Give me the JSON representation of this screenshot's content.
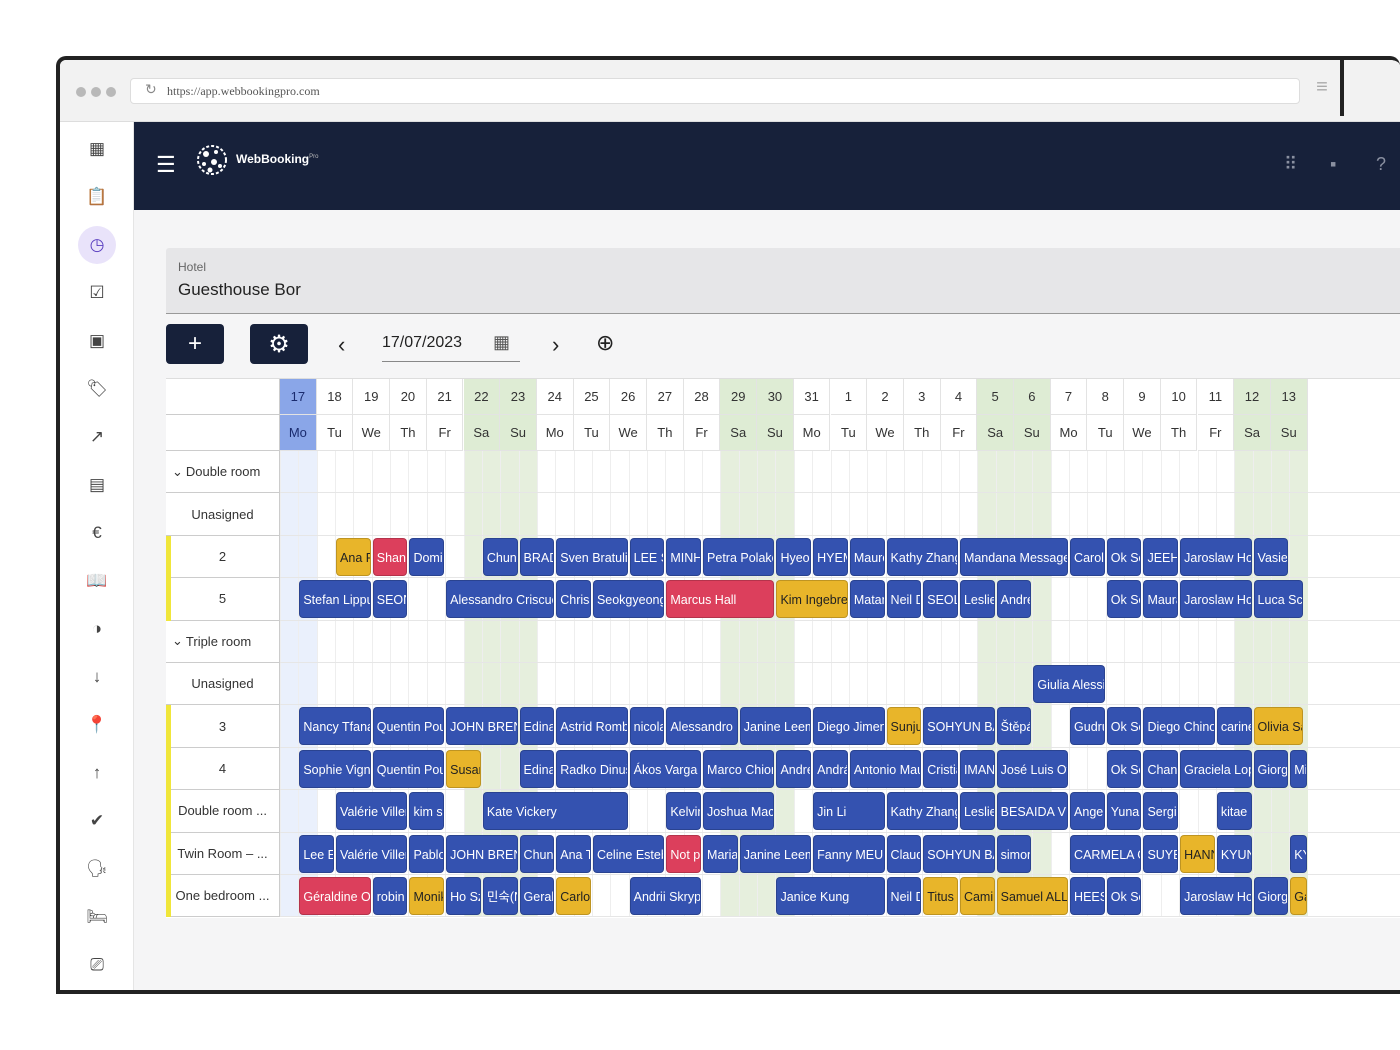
{
  "browser": {
    "url": "https://app.webbookingpro.com"
  },
  "app": {
    "logo_name": "WebBooking",
    "logo_sup": "Pro"
  },
  "hotel": {
    "label": "Hotel",
    "value": "Guesthouse Bor"
  },
  "toolbar": {
    "add_label": "+",
    "settings_icon": "gear-icon",
    "prev": "‹",
    "next": "›",
    "date": "17/07/2023"
  },
  "days": {
    "numbers": [
      "17",
      "18",
      "19",
      "20",
      "21",
      "22",
      "23",
      "24",
      "25",
      "26",
      "27",
      "28",
      "29",
      "30",
      "31",
      "1",
      "2",
      "3",
      "4",
      "5",
      "6",
      "7",
      "8",
      "9",
      "10",
      "11",
      "12",
      "13"
    ],
    "names": [
      "Mo",
      "Tu",
      "We",
      "Th",
      "Fr",
      "Sa",
      "Su",
      "Mo",
      "Tu",
      "We",
      "Th",
      "Fr",
      "Sa",
      "Su",
      "Mo",
      "Tu",
      "We",
      "Th",
      "Fr",
      "Sa",
      "Su",
      "Mo",
      "Tu",
      "We",
      "Th",
      "Fr",
      "Sa",
      "Su"
    ]
  },
  "rows": [
    {
      "label": "Double room",
      "type": "group"
    },
    {
      "label": "Unasigned",
      "type": "room"
    },
    {
      "label": "2",
      "type": "room"
    },
    {
      "label": "5",
      "type": "room"
    },
    {
      "label": "Triple room",
      "type": "group"
    },
    {
      "label": "Unasigned",
      "type": "room"
    },
    {
      "label": "3",
      "type": "room"
    },
    {
      "label": "4",
      "type": "room"
    },
    {
      "label": "Double room ...",
      "type": "room"
    },
    {
      "label": "Twin Room – ...",
      "type": "room"
    },
    {
      "label": "One bedroom ...",
      "type": "room"
    }
  ],
  "bookings": [
    {
      "row": 2,
      "day": 1.5,
      "span": 1,
      "name": "Ana Pc",
      "color": "y"
    },
    {
      "row": 2,
      "day": 2.5,
      "span": 1,
      "name": "Shann",
      "color": "r"
    },
    {
      "row": 2,
      "day": 3.5,
      "span": 1,
      "name": "Domin",
      "color": "b"
    },
    {
      "row": 2,
      "day": 5.5,
      "span": 1,
      "name": "Chun-",
      "color": "b"
    },
    {
      "row": 2,
      "day": 6.5,
      "span": 1,
      "name": "BRADY",
      "color": "b"
    },
    {
      "row": 2,
      "day": 7.5,
      "span": 2,
      "name": "Sven Bratulic",
      "color": "b"
    },
    {
      "row": 2,
      "day": 9.5,
      "span": 1,
      "name": "LEE SC",
      "color": "b"
    },
    {
      "row": 2,
      "day": 10.5,
      "span": 1,
      "name": "MINH",
      "color": "b"
    },
    {
      "row": 2,
      "day": 11.5,
      "span": 2,
      "name": "Petra Polakov",
      "color": "b"
    },
    {
      "row": 2,
      "day": 13.5,
      "span": 1,
      "name": "Hyeon",
      "color": "b"
    },
    {
      "row": 2,
      "day": 14.5,
      "span": 1,
      "name": "HYEM",
      "color": "b"
    },
    {
      "row": 2,
      "day": 15.5,
      "span": 1,
      "name": "Mauro",
      "color": "b"
    },
    {
      "row": 2,
      "day": 16.5,
      "span": 2,
      "name": "Kathy Zhang",
      "color": "b"
    },
    {
      "row": 2,
      "day": 18.5,
      "span": 3,
      "name": "Mandana Messager",
      "color": "b"
    },
    {
      "row": 2,
      "day": 21.5,
      "span": 1,
      "name": "Carolin",
      "color": "b"
    },
    {
      "row": 2,
      "day": 22.5,
      "span": 1,
      "name": "Ok So",
      "color": "b"
    },
    {
      "row": 2,
      "day": 23.5,
      "span": 1,
      "name": "JEEHY",
      "color": "b"
    },
    {
      "row": 2,
      "day": 24.5,
      "span": 2,
      "name": "Jaroslaw Horo",
      "color": "b"
    },
    {
      "row": 2,
      "day": 26.5,
      "span": 1,
      "name": "Vasieic",
      "color": "b"
    },
    {
      "row": 3,
      "day": 0.5,
      "span": 2,
      "name": "Stefan Lippun",
      "color": "b"
    },
    {
      "row": 3,
      "day": 2.5,
      "span": 1,
      "name": "SEONJ",
      "color": "b"
    },
    {
      "row": 3,
      "day": 4.5,
      "span": 3,
      "name": "Alessandro Criscuolo",
      "color": "b"
    },
    {
      "row": 3,
      "day": 7.5,
      "span": 1,
      "name": "Chrissi",
      "color": "b"
    },
    {
      "row": 3,
      "day": 8.5,
      "span": 2,
      "name": "Seokgyeong",
      "color": "b"
    },
    {
      "row": 3,
      "day": 10.5,
      "span": 3,
      "name": "Marcus Hall",
      "color": "r"
    },
    {
      "row": 3,
      "day": 13.5,
      "span": 2,
      "name": "Kim Ingebrets",
      "color": "y"
    },
    {
      "row": 3,
      "day": 15.5,
      "span": 1,
      "name": "Matan",
      "color": "b"
    },
    {
      "row": 3,
      "day": 16.5,
      "span": 1,
      "name": "Neil D",
      "color": "b"
    },
    {
      "row": 3,
      "day": 17.5,
      "span": 1,
      "name": "SEOLH",
      "color": "b"
    },
    {
      "row": 3,
      "day": 18.5,
      "span": 1,
      "name": "Leslie",
      "color": "b"
    },
    {
      "row": 3,
      "day": 19.5,
      "span": 1,
      "name": "Andrea",
      "color": "b"
    },
    {
      "row": 3,
      "day": 22.5,
      "span": 1,
      "name": "Ok So",
      "color": "b"
    },
    {
      "row": 3,
      "day": 23.5,
      "span": 1,
      "name": "Maura",
      "color": "b"
    },
    {
      "row": 3,
      "day": 24.5,
      "span": 2,
      "name": "Jaroslaw Horo",
      "color": "b"
    },
    {
      "row": 3,
      "day": 26.5,
      "span": 1.4,
      "name": "Luca Schia",
      "color": "b"
    },
    {
      "row": 5,
      "day": 20.5,
      "span": 2,
      "name": "Giulia Alessi",
      "color": "b"
    },
    {
      "row": 6,
      "day": 0.5,
      "span": 2,
      "name": "Nancy Tfanak",
      "color": "b"
    },
    {
      "row": 6,
      "day": 2.5,
      "span": 2,
      "name": "Quentin Poup",
      "color": "b"
    },
    {
      "row": 6,
      "day": 4.5,
      "span": 2,
      "name": "JOHN BRENN",
      "color": "b"
    },
    {
      "row": 6,
      "day": 6.5,
      "span": 1,
      "name": "Edina",
      "color": "b"
    },
    {
      "row": 6,
      "day": 7.5,
      "span": 2,
      "name": "Astrid Rombo",
      "color": "b"
    },
    {
      "row": 6,
      "day": 9.5,
      "span": 1,
      "name": "nicolas",
      "color": "b"
    },
    {
      "row": 6,
      "day": 10.5,
      "span": 2,
      "name": "Alessandro Fe",
      "color": "b"
    },
    {
      "row": 6,
      "day": 12.5,
      "span": 2,
      "name": "Janine Leemr",
      "color": "b"
    },
    {
      "row": 6,
      "day": 14.5,
      "span": 2,
      "name": "Diego Jimene",
      "color": "b"
    },
    {
      "row": 6,
      "day": 16.5,
      "span": 1,
      "name": "Sunjur",
      "color": "y"
    },
    {
      "row": 6,
      "day": 17.5,
      "span": 2,
      "name": "SOHYUN BAE",
      "color": "b"
    },
    {
      "row": 6,
      "day": 19.5,
      "span": 1,
      "name": "Štěpán",
      "color": "b"
    },
    {
      "row": 6,
      "day": 21.5,
      "span": 1,
      "name": "Gudru",
      "color": "b"
    },
    {
      "row": 6,
      "day": 22.5,
      "span": 1,
      "name": "Ok So",
      "color": "b"
    },
    {
      "row": 6,
      "day": 23.5,
      "span": 2,
      "name": "Diego Chinos",
      "color": "b"
    },
    {
      "row": 6,
      "day": 25.5,
      "span": 1,
      "name": "carine",
      "color": "b"
    },
    {
      "row": 6,
      "day": 26.5,
      "span": 1.4,
      "name": "Olivia San",
      "color": "y"
    },
    {
      "row": 7,
      "day": 0.5,
      "span": 2,
      "name": "Sophie Vigna",
      "color": "b"
    },
    {
      "row": 7,
      "day": 2.5,
      "span": 2,
      "name": "Quentin Poup",
      "color": "b"
    },
    {
      "row": 7,
      "day": 4.5,
      "span": 1,
      "name": "Susan",
      "color": "y"
    },
    {
      "row": 7,
      "day": 6.5,
      "span": 1,
      "name": "Edina",
      "color": "b"
    },
    {
      "row": 7,
      "day": 7.5,
      "span": 2,
      "name": "Radko Dinuš",
      "color": "b"
    },
    {
      "row": 7,
      "day": 9.5,
      "span": 2,
      "name": "Ákos Varga",
      "color": "b"
    },
    {
      "row": 7,
      "day": 11.5,
      "span": 2,
      "name": "Marco Chione",
      "color": "b"
    },
    {
      "row": 7,
      "day": 13.5,
      "span": 1,
      "name": "Andrea",
      "color": "b"
    },
    {
      "row": 7,
      "day": 14.5,
      "span": 1,
      "name": "András",
      "color": "b"
    },
    {
      "row": 7,
      "day": 15.5,
      "span": 2,
      "name": "Antonio Mau",
      "color": "b"
    },
    {
      "row": 7,
      "day": 17.5,
      "span": 1,
      "name": "Cristia",
      "color": "b"
    },
    {
      "row": 7,
      "day": 18.5,
      "span": 1,
      "name": "IMAN",
      "color": "b"
    },
    {
      "row": 7,
      "day": 19.5,
      "span": 2,
      "name": "José Luis Ove",
      "color": "b"
    },
    {
      "row": 7,
      "day": 22.5,
      "span": 1,
      "name": "Ok So",
      "color": "b"
    },
    {
      "row": 7,
      "day": 23.5,
      "span": 1,
      "name": "Chanh",
      "color": "b"
    },
    {
      "row": 7,
      "day": 24.5,
      "span": 2,
      "name": "Graciela Lope",
      "color": "b"
    },
    {
      "row": 7,
      "day": 26.5,
      "span": 1,
      "name": "Giorgi",
      "color": "b"
    },
    {
      "row": 7,
      "day": 27.5,
      "span": 0.5,
      "name": "Mi",
      "color": "b"
    },
    {
      "row": 8,
      "day": 1.5,
      "span": 2,
      "name": "Valérie Villene",
      "color": "b"
    },
    {
      "row": 8,
      "day": 3.5,
      "span": 1,
      "name": "kim se",
      "color": "b"
    },
    {
      "row": 8,
      "day": 5.5,
      "span": 4,
      "name": "Kate Vickery",
      "color": "b"
    },
    {
      "row": 8,
      "day": 10.5,
      "span": 1,
      "name": "Kelvin",
      "color": "b"
    },
    {
      "row": 8,
      "day": 11.5,
      "span": 2,
      "name": "Joshua Mack",
      "color": "b"
    },
    {
      "row": 8,
      "day": 14.5,
      "span": 2,
      "name": "Jin Li",
      "color": "b"
    },
    {
      "row": 8,
      "day": 16.5,
      "span": 2,
      "name": "Kathy Zhang",
      "color": "b"
    },
    {
      "row": 8,
      "day": 18.5,
      "span": 1,
      "name": "Leslie",
      "color": "b"
    },
    {
      "row": 8,
      "day": 19.5,
      "span": 2,
      "name": "BESAIDA VER",
      "color": "b"
    },
    {
      "row": 8,
      "day": 21.5,
      "span": 1,
      "name": "Angela",
      "color": "b"
    },
    {
      "row": 8,
      "day": 22.5,
      "span": 1,
      "name": "Yunah",
      "color": "b"
    },
    {
      "row": 8,
      "day": 23.5,
      "span": 1,
      "name": "Sergio",
      "color": "b"
    },
    {
      "row": 8,
      "day": 25.5,
      "span": 1,
      "name": "kitae n",
      "color": "b"
    },
    {
      "row": 9,
      "day": 0.5,
      "span": 1,
      "name": "Lee Eu",
      "color": "b"
    },
    {
      "row": 9,
      "day": 1.5,
      "span": 2,
      "name": "Valérie Villene",
      "color": "b"
    },
    {
      "row": 9,
      "day": 3.5,
      "span": 1,
      "name": "Pablo",
      "color": "b"
    },
    {
      "row": 9,
      "day": 4.5,
      "span": 2,
      "name": "JOHN BRENN",
      "color": "b"
    },
    {
      "row": 9,
      "day": 6.5,
      "span": 1,
      "name": "Chun-",
      "color": "b"
    },
    {
      "row": 9,
      "day": 7.5,
      "span": 1,
      "name": "Ana To",
      "color": "b"
    },
    {
      "row": 9,
      "day": 8.5,
      "span": 2,
      "name": "Celine Esteba",
      "color": "b"
    },
    {
      "row": 9,
      "day": 10.5,
      "span": 1,
      "name": "Not pr",
      "color": "r"
    },
    {
      "row": 9,
      "day": 11.5,
      "span": 1,
      "name": "Maria",
      "color": "b"
    },
    {
      "row": 9,
      "day": 12.5,
      "span": 2,
      "name": "Janine Leemr",
      "color": "b"
    },
    {
      "row": 9,
      "day": 14.5,
      "span": 2,
      "name": "Fanny MEURI",
      "color": "b"
    },
    {
      "row": 9,
      "day": 16.5,
      "span": 1,
      "name": "Claudi",
      "color": "b"
    },
    {
      "row": 9,
      "day": 17.5,
      "span": 2,
      "name": "SOHYUN BAE",
      "color": "b"
    },
    {
      "row": 9,
      "day": 19.5,
      "span": 1,
      "name": "simon",
      "color": "b"
    },
    {
      "row": 9,
      "day": 21.5,
      "span": 2,
      "name": "CARMELA GE",
      "color": "b"
    },
    {
      "row": 9,
      "day": 23.5,
      "span": 1,
      "name": "SUYEO",
      "color": "b"
    },
    {
      "row": 9,
      "day": 24.5,
      "span": 1,
      "name": "HANN",
      "color": "y"
    },
    {
      "row": 9,
      "day": 25.5,
      "span": 1,
      "name": "KYUN",
      "color": "b"
    },
    {
      "row": 9,
      "day": 27.5,
      "span": 0.5,
      "name": "KY",
      "color": "b"
    },
    {
      "row": 10,
      "day": 0.5,
      "span": 2,
      "name": "Géraldine Oli",
      "color": "r"
    },
    {
      "row": 10,
      "day": 2.5,
      "span": 1,
      "name": "robin",
      "color": "b"
    },
    {
      "row": 10,
      "day": 3.5,
      "span": 1,
      "name": "Monik",
      "color": "y"
    },
    {
      "row": 10,
      "day": 4.5,
      "span": 1,
      "name": "Ho Sze",
      "color": "b"
    },
    {
      "row": 10,
      "day": 5.5,
      "span": 1,
      "name": "민숙(N",
      "color": "b"
    },
    {
      "row": 10,
      "day": 6.5,
      "span": 1,
      "name": "Gerald",
      "color": "b"
    },
    {
      "row": 10,
      "day": 7.5,
      "span": 1,
      "name": "Carlos",
      "color": "y"
    },
    {
      "row": 10,
      "day": 9.5,
      "span": 2,
      "name": "Andrii Skrypn",
      "color": "b"
    },
    {
      "row": 10,
      "day": 13.5,
      "span": 3,
      "name": "Janice Kung",
      "color": "b"
    },
    {
      "row": 10,
      "day": 16.5,
      "span": 1,
      "name": "Neil D",
      "color": "b"
    },
    {
      "row": 10,
      "day": 17.5,
      "span": 1,
      "name": "Titus V",
      "color": "y"
    },
    {
      "row": 10,
      "day": 18.5,
      "span": 1,
      "name": "Camill",
      "color": "y"
    },
    {
      "row": 10,
      "day": 19.5,
      "span": 2,
      "name": "Samuel ALLA",
      "color": "y"
    },
    {
      "row": 10,
      "day": 21.5,
      "span": 1,
      "name": "HEESE",
      "color": "b"
    },
    {
      "row": 10,
      "day": 22.5,
      "span": 1,
      "name": "Ok So",
      "color": "b"
    },
    {
      "row": 10,
      "day": 24.5,
      "span": 2,
      "name": "Jaroslaw Horo",
      "color": "b"
    },
    {
      "row": 10,
      "day": 26.5,
      "span": 1,
      "name": "Giorgi",
      "color": "b"
    },
    {
      "row": 10,
      "day": 27.5,
      "span": 0.5,
      "name": "Ga",
      "color": "y"
    }
  ],
  "colors": {
    "blue": "#3452b0",
    "yellow": "#e8b52a",
    "red": "#dc3f5c",
    "header": "#17213a",
    "weekend": "#deecd4"
  }
}
